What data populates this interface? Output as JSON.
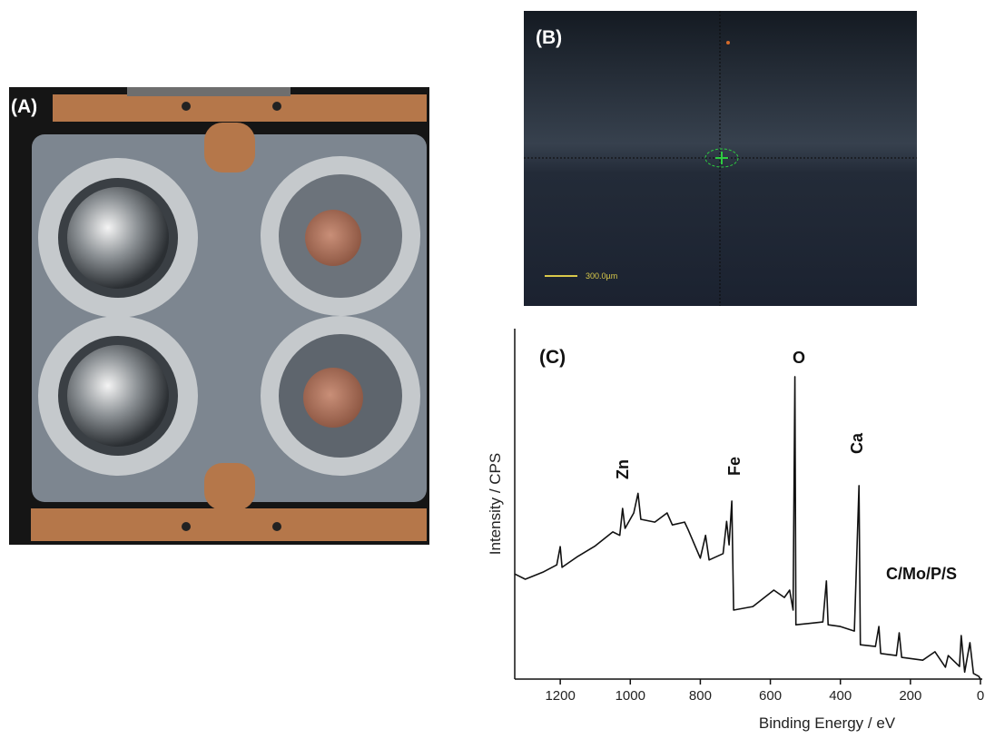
{
  "panels": {
    "a": {
      "label": "(A)"
    },
    "b": {
      "label": "(B)",
      "scale_bar": "300.0µm"
    }
  },
  "chart_data": {
    "type": "line",
    "panel_label": "(C)",
    "x_label": "Binding Energy / eV",
    "y_label": "Intensity / CPS",
    "x": [
      1330,
      1300,
      1250,
      1210,
      1200,
      1195,
      1150,
      1100,
      1050,
      1030,
      1022,
      1015,
      990,
      978,
      970,
      930,
      895,
      880,
      845,
      835,
      800,
      785,
      775,
      735,
      725,
      718,
      710,
      705,
      650,
      590,
      560,
      545,
      535,
      530,
      527,
      450,
      440,
      435,
      400,
      360,
      347,
      343,
      300,
      290,
      285,
      240,
      232,
      225,
      165,
      130,
      100,
      92,
      60,
      55,
      45,
      30,
      20,
      5,
      0
    ],
    "series": [
      {
        "color": "#111111",
        "values": [
          30,
          28.5,
          30.5,
          32.6,
          37.8,
          31.9,
          35,
          38,
          42,
          41,
          48.7,
          43,
          47.4,
          53,
          45.6,
          44.8,
          47.4,
          44,
          44.8,
          42.7,
          34.5,
          41,
          34,
          35.8,
          45,
          38.3,
          50.8,
          19.7,
          20.7,
          25.4,
          23.3,
          25.4,
          19.7,
          86.3,
          15.5,
          16.3,
          28,
          15.5,
          15,
          13.7,
          55.2,
          9.8,
          9.3,
          15,
          7.3,
          6.7,
          13.2,
          6.2,
          5.4,
          7.8,
          3.4,
          6.7,
          3.6,
          12.4,
          2,
          10.4,
          1.6,
          0.8,
          0
        ]
      }
    ],
    "xlim": [
      1330,
      0
    ],
    "ylim": [
      0,
      100
    ],
    "xticks": [
      1200,
      1000,
      800,
      600,
      400,
      200,
      0
    ],
    "annotations": [
      "Zn",
      "Fe",
      "O",
      "Ca",
      "C/Mo/P/S"
    ]
  }
}
